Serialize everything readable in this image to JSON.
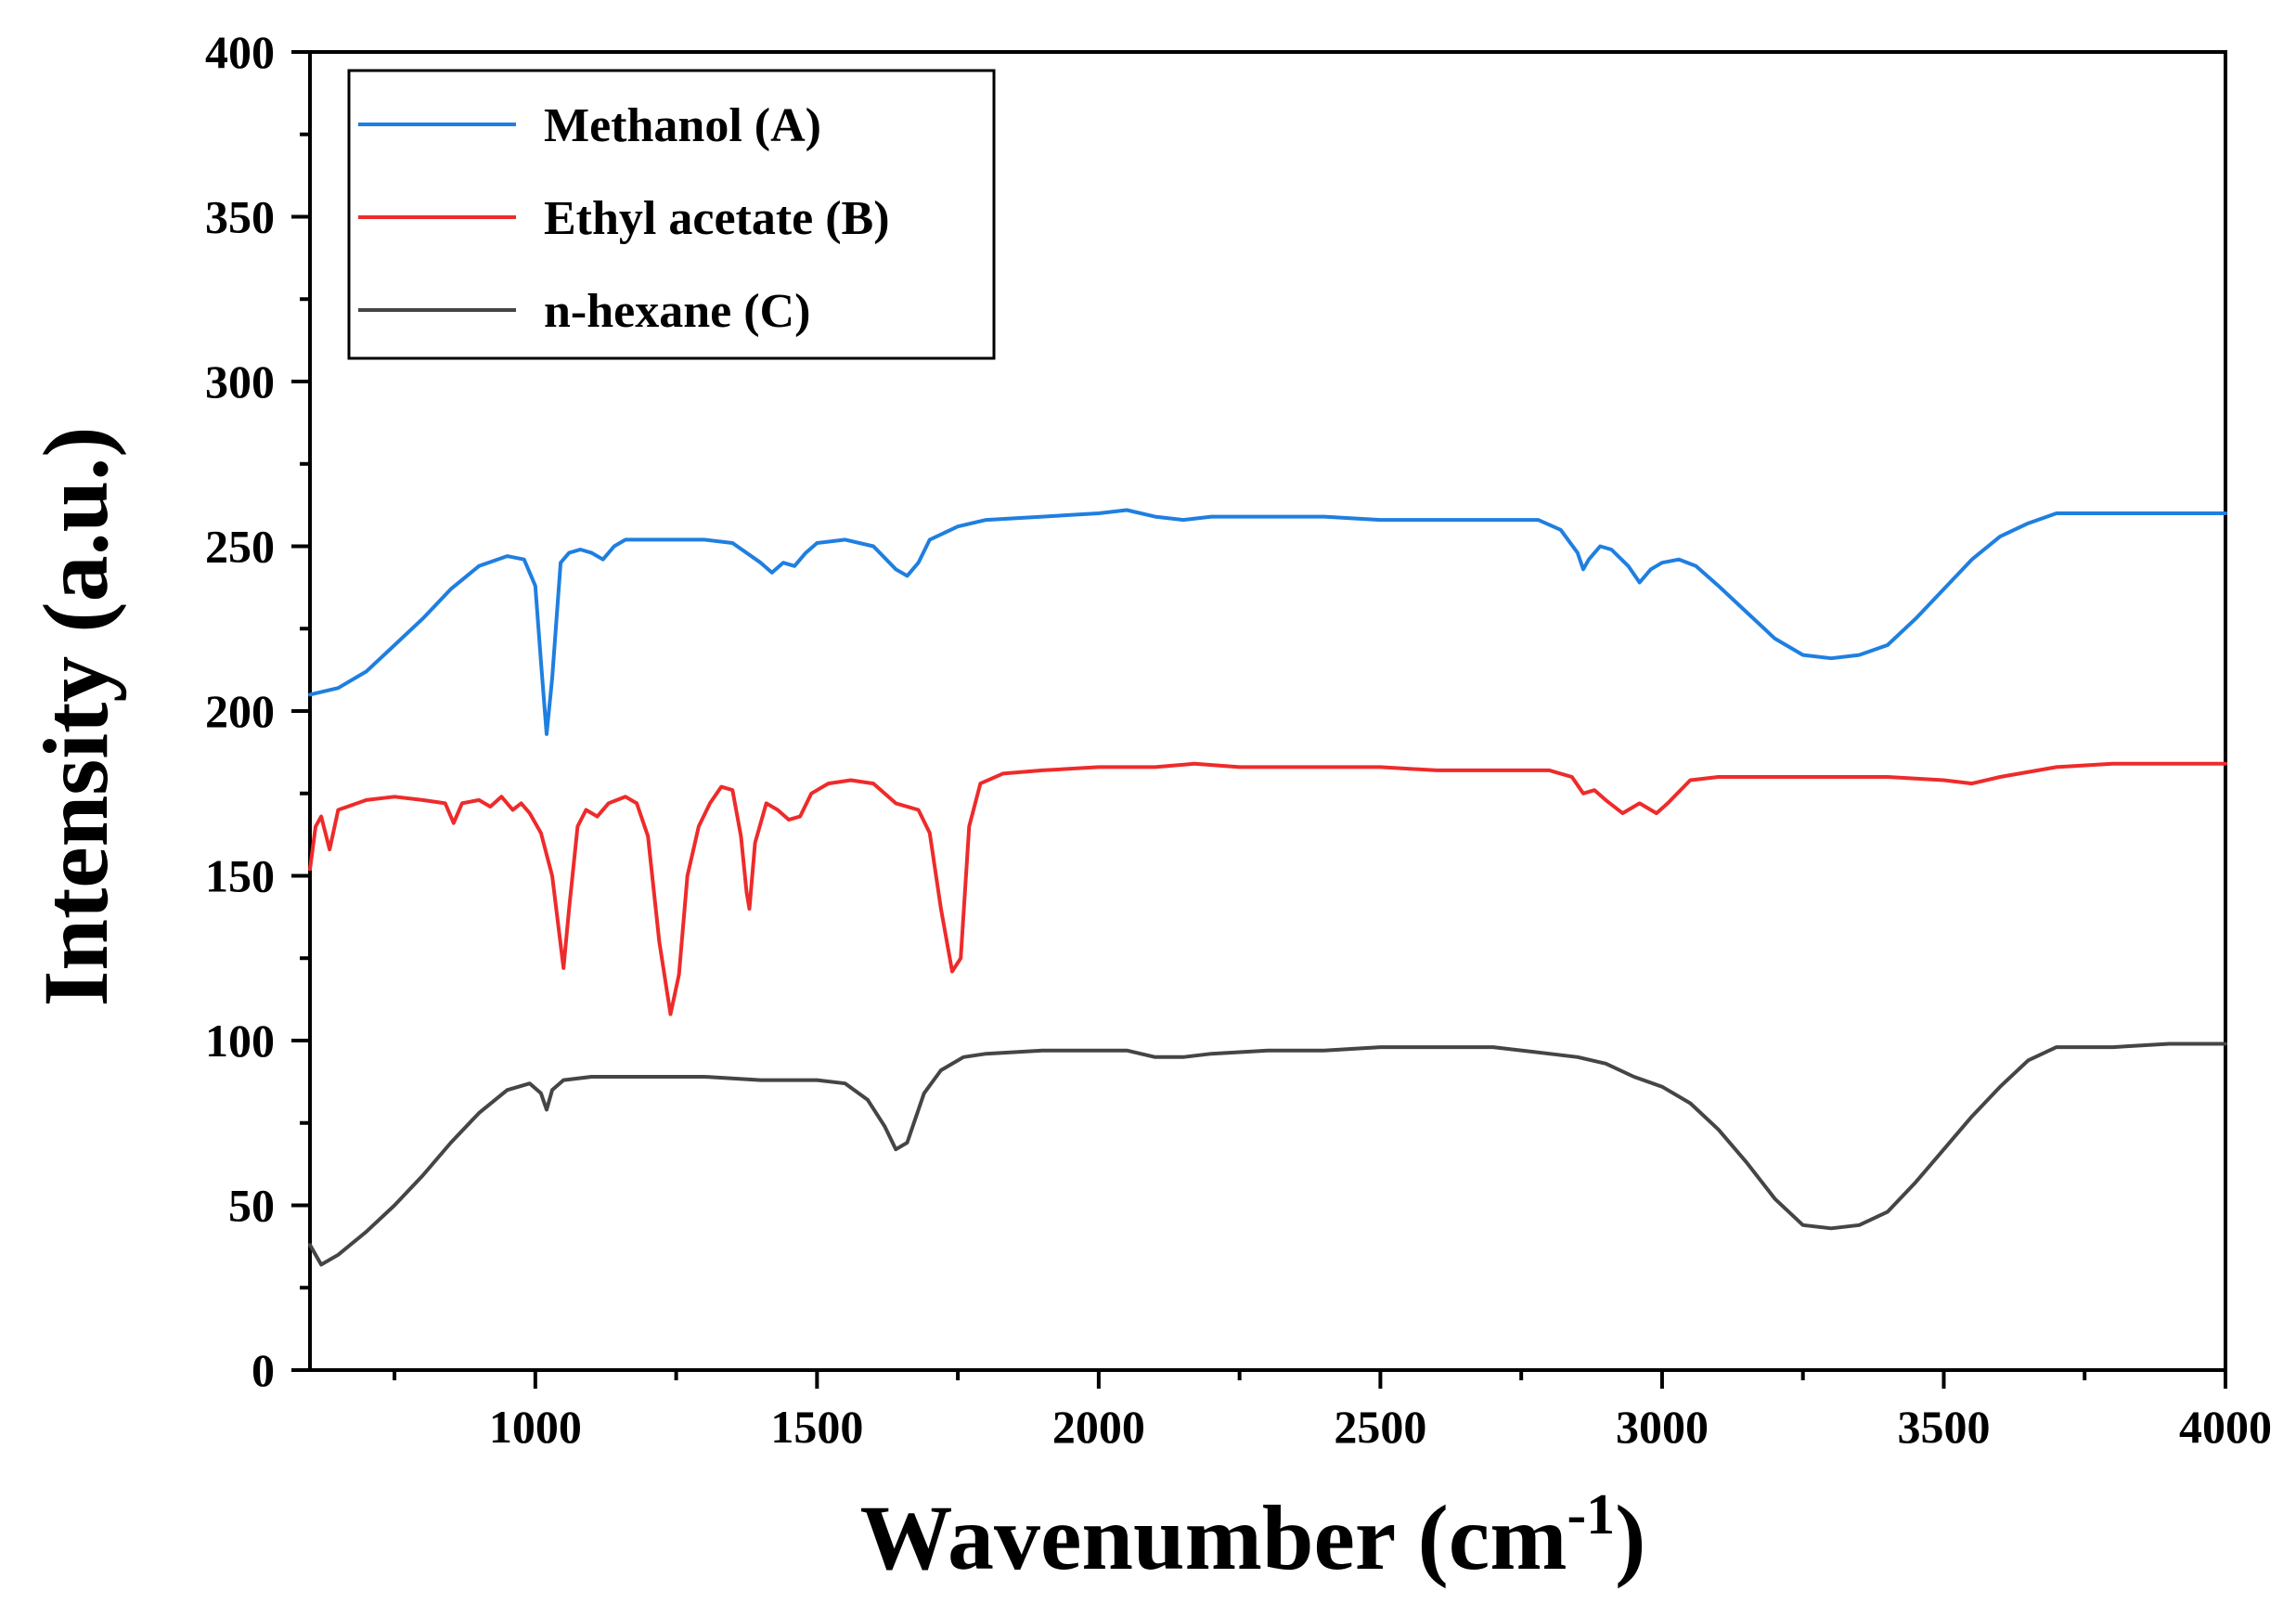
{
  "chart_data": {
    "type": "line",
    "title": "",
    "xlabel": "Wavenumber (cm",
    "xlabel_sup": "-1",
    "xlabel_close": ")",
    "ylabel": "Intensity (a.u.)",
    "xlim": [
      600,
      4000
    ],
    "ylim": [
      0,
      400
    ],
    "xticks": [
      1000,
      1500,
      2000,
      2500,
      3000,
      3500,
      4000
    ],
    "yticks": [
      0,
      50,
      100,
      150,
      200,
      250,
      300,
      350,
      400
    ],
    "grid": false,
    "legend_position": "top-left",
    "series": [
      {
        "name": "Methanol (A)",
        "color": "#1f7fe0",
        "points": [
          [
            600,
            205
          ],
          [
            650,
            207
          ],
          [
            700,
            212
          ],
          [
            750,
            220
          ],
          [
            800,
            228
          ],
          [
            850,
            237
          ],
          [
            900,
            244
          ],
          [
            950,
            247
          ],
          [
            980,
            246
          ],
          [
            1000,
            238
          ],
          [
            1010,
            215
          ],
          [
            1020,
            193
          ],
          [
            1030,
            210
          ],
          [
            1045,
            245
          ],
          [
            1060,
            248
          ],
          [
            1080,
            249
          ],
          [
            1100,
            248
          ],
          [
            1120,
            246
          ],
          [
            1140,
            250
          ],
          [
            1160,
            252
          ],
          [
            1200,
            252
          ],
          [
            1250,
            252
          ],
          [
            1300,
            252
          ],
          [
            1350,
            251
          ],
          [
            1400,
            245
          ],
          [
            1420,
            242
          ],
          [
            1440,
            245
          ],
          [
            1460,
            244
          ],
          [
            1480,
            248
          ],
          [
            1500,
            251
          ],
          [
            1550,
            252
          ],
          [
            1600,
            250
          ],
          [
            1640,
            243
          ],
          [
            1660,
            241
          ],
          [
            1680,
            245
          ],
          [
            1700,
            252
          ],
          [
            1750,
            256
          ],
          [
            1800,
            258
          ],
          [
            1900,
            259
          ],
          [
            2000,
            260
          ],
          [
            2050,
            261
          ],
          [
            2100,
            259
          ],
          [
            2150,
            258
          ],
          [
            2200,
            259
          ],
          [
            2300,
            259
          ],
          [
            2400,
            259
          ],
          [
            2500,
            258
          ],
          [
            2600,
            258
          ],
          [
            2700,
            258
          ],
          [
            2780,
            258
          ],
          [
            2820,
            255
          ],
          [
            2850,
            248
          ],
          [
            2860,
            243
          ],
          [
            2870,
            246
          ],
          [
            2890,
            250
          ],
          [
            2910,
            249
          ],
          [
            2940,
            244
          ],
          [
            2960,
            239
          ],
          [
            2980,
            243
          ],
          [
            3000,
            245
          ],
          [
            3030,
            246
          ],
          [
            3060,
            244
          ],
          [
            3100,
            238
          ],
          [
            3150,
            230
          ],
          [
            3200,
            222
          ],
          [
            3250,
            217
          ],
          [
            3300,
            216
          ],
          [
            3350,
            217
          ],
          [
            3400,
            220
          ],
          [
            3450,
            228
          ],
          [
            3500,
            237
          ],
          [
            3550,
            246
          ],
          [
            3600,
            253
          ],
          [
            3650,
            257
          ],
          [
            3700,
            260
          ],
          [
            3800,
            260
          ],
          [
            3900,
            260
          ],
          [
            4000,
            260
          ]
        ]
      },
      {
        "name": "Ethyl acetate (B)",
        "color": "#ee2b2b",
        "points": [
          [
            600,
            152
          ],
          [
            610,
            165
          ],
          [
            620,
            168
          ],
          [
            635,
            158
          ],
          [
            650,
            170
          ],
          [
            700,
            173
          ],
          [
            750,
            174
          ],
          [
            800,
            173
          ],
          [
            840,
            172
          ],
          [
            855,
            166
          ],
          [
            870,
            172
          ],
          [
            900,
            173
          ],
          [
            920,
            171
          ],
          [
            940,
            174
          ],
          [
            960,
            170
          ],
          [
            975,
            172
          ],
          [
            990,
            169
          ],
          [
            1010,
            163
          ],
          [
            1030,
            150
          ],
          [
            1050,
            122
          ],
          [
            1060,
            140
          ],
          [
            1075,
            165
          ],
          [
            1090,
            170
          ],
          [
            1110,
            168
          ],
          [
            1130,
            172
          ],
          [
            1160,
            174
          ],
          [
            1180,
            172
          ],
          [
            1200,
            162
          ],
          [
            1220,
            130
          ],
          [
            1240,
            108
          ],
          [
            1255,
            120
          ],
          [
            1270,
            150
          ],
          [
            1290,
            165
          ],
          [
            1310,
            172
          ],
          [
            1330,
            177
          ],
          [
            1350,
            176
          ],
          [
            1365,
            162
          ],
          [
            1375,
            145
          ],
          [
            1380,
            140
          ],
          [
            1390,
            160
          ],
          [
            1410,
            172
          ],
          [
            1430,
            170
          ],
          [
            1450,
            167
          ],
          [
            1470,
            168
          ],
          [
            1490,
            175
          ],
          [
            1520,
            178
          ],
          [
            1560,
            179
          ],
          [
            1600,
            178
          ],
          [
            1640,
            172
          ],
          [
            1680,
            170
          ],
          [
            1700,
            163
          ],
          [
            1720,
            140
          ],
          [
            1740,
            121
          ],
          [
            1755,
            125
          ],
          [
            1770,
            165
          ],
          [
            1790,
            178
          ],
          [
            1830,
            181
          ],
          [
            1900,
            182
          ],
          [
            2000,
            183
          ],
          [
            2100,
            183
          ],
          [
            2170,
            184
          ],
          [
            2250,
            183
          ],
          [
            2400,
            183
          ],
          [
            2500,
            183
          ],
          [
            2600,
            182
          ],
          [
            2700,
            182
          ],
          [
            2800,
            182
          ],
          [
            2840,
            180
          ],
          [
            2860,
            175
          ],
          [
            2880,
            176
          ],
          [
            2900,
            173
          ],
          [
            2930,
            169
          ],
          [
            2960,
            172
          ],
          [
            2990,
            169
          ],
          [
            3010,
            172
          ],
          [
            3050,
            179
          ],
          [
            3100,
            180
          ],
          [
            3200,
            180
          ],
          [
            3300,
            180
          ],
          [
            3400,
            180
          ],
          [
            3500,
            179
          ],
          [
            3550,
            178
          ],
          [
            3600,
            180
          ],
          [
            3700,
            183
          ],
          [
            3800,
            184
          ],
          [
            3900,
            184
          ],
          [
            4000,
            184
          ]
        ]
      },
      {
        "name": "n-hexane (C)",
        "color": "#454545",
        "points": [
          [
            600,
            38
          ],
          [
            620,
            32
          ],
          [
            650,
            35
          ],
          [
            700,
            42
          ],
          [
            750,
            50
          ],
          [
            800,
            59
          ],
          [
            850,
            69
          ],
          [
            900,
            78
          ],
          [
            950,
            85
          ],
          [
            990,
            87
          ],
          [
            1010,
            84
          ],
          [
            1020,
            79
          ],
          [
            1030,
            85
          ],
          [
            1050,
            88
          ],
          [
            1100,
            89
          ],
          [
            1200,
            89
          ],
          [
            1300,
            89
          ],
          [
            1400,
            88
          ],
          [
            1500,
            88
          ],
          [
            1550,
            87
          ],
          [
            1590,
            82
          ],
          [
            1620,
            74
          ],
          [
            1640,
            67
          ],
          [
            1660,
            69
          ],
          [
            1690,
            84
          ],
          [
            1720,
            91
          ],
          [
            1760,
            95
          ],
          [
            1800,
            96
          ],
          [
            1900,
            97
          ],
          [
            2000,
            97
          ],
          [
            2050,
            97
          ],
          [
            2100,
            95
          ],
          [
            2150,
            95
          ],
          [
            2200,
            96
          ],
          [
            2300,
            97
          ],
          [
            2400,
            97
          ],
          [
            2500,
            98
          ],
          [
            2600,
            98
          ],
          [
            2700,
            98
          ],
          [
            2800,
            96
          ],
          [
            2850,
            95
          ],
          [
            2900,
            93
          ],
          [
            2950,
            89
          ],
          [
            3000,
            86
          ],
          [
            3050,
            81
          ],
          [
            3100,
            73
          ],
          [
            3150,
            63
          ],
          [
            3200,
            52
          ],
          [
            3250,
            44
          ],
          [
            3300,
            43
          ],
          [
            3350,
            44
          ],
          [
            3400,
            48
          ],
          [
            3450,
            57
          ],
          [
            3500,
            67
          ],
          [
            3550,
            77
          ],
          [
            3600,
            86
          ],
          [
            3650,
            94
          ],
          [
            3700,
            98
          ],
          [
            3800,
            98
          ],
          [
            3900,
            99
          ],
          [
            4000,
            99
          ]
        ]
      }
    ]
  }
}
